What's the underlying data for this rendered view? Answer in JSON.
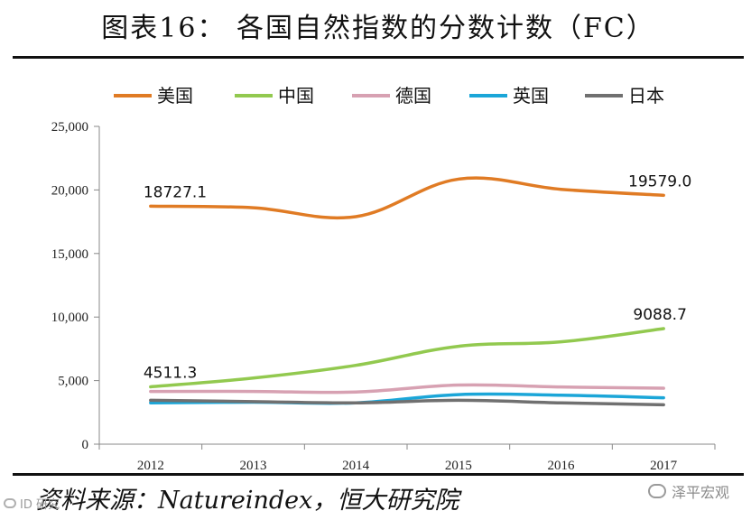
{
  "title": "图表16： 各国自然指数的分数计数（FC）",
  "source": "资料来源：Natureindex，恒大研究院",
  "watermark": "泽平宏观",
  "watermark_left": "ID 研究",
  "chart_data": {
    "type": "line",
    "categories": [
      "2012",
      "2013",
      "2014",
      "2015",
      "2016",
      "2017"
    ],
    "ylim": [
      0,
      25000
    ],
    "yticks": [
      0,
      5000,
      10000,
      15000,
      20000,
      25000
    ],
    "ytick_labels": [
      "0",
      "5,000",
      "10,000",
      "15,000",
      "20,000",
      "25,000"
    ],
    "legend_position": "top",
    "grid": false,
    "series": [
      {
        "name": "美国",
        "color": "#E07B24",
        "values": [
          18727.1,
          18600,
          17900,
          20850,
          20050,
          19579.0
        ]
      },
      {
        "name": "中国",
        "color": "#92C94F",
        "values": [
          4511.3,
          5200,
          6200,
          7700,
          8050,
          9088.7
        ]
      },
      {
        "name": "德国",
        "color": "#D7A1B2",
        "values": [
          4150,
          4150,
          4100,
          4650,
          4500,
          4400
        ]
      },
      {
        "name": "英国",
        "color": "#1BA6D8",
        "values": [
          3250,
          3300,
          3250,
          3900,
          3850,
          3650
        ]
      },
      {
        "name": "日本",
        "color": "#707070",
        "values": [
          3450,
          3350,
          3250,
          3450,
          3250,
          3100
        ]
      }
    ],
    "annotations": [
      {
        "series": 0,
        "index": 0,
        "text": "18727.1"
      },
      {
        "series": 0,
        "index": 5,
        "text": "19579.0"
      },
      {
        "series": 1,
        "index": 0,
        "text": "4511.3"
      },
      {
        "series": 1,
        "index": 5,
        "text": "9088.7"
      }
    ]
  }
}
